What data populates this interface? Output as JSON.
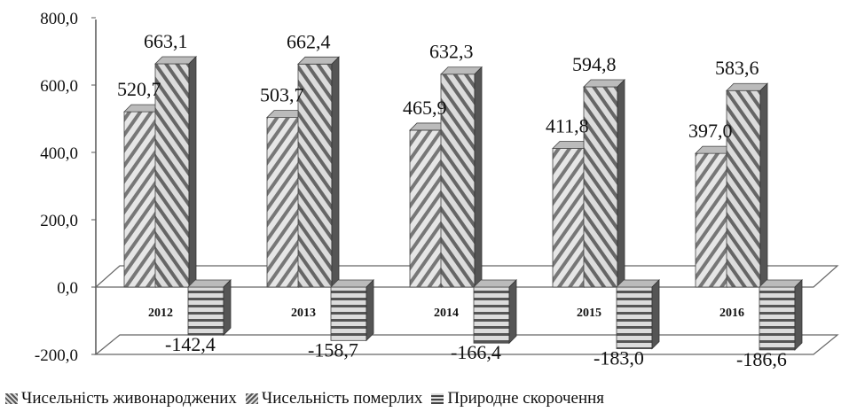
{
  "chart_data": {
    "type": "bar",
    "categories": [
      "2012",
      "2013",
      "2014",
      "2015",
      "2016"
    ],
    "series": [
      {
        "name": "Чисельність живонароджених",
        "values": [
          520.7,
          503.7,
          465.9,
          411.8,
          397.0
        ],
        "labels": [
          "520,7",
          "503,7",
          "465,9",
          "411,8",
          "397,0"
        ]
      },
      {
        "name": "Чисельність померлих",
        "values": [
          663.1,
          662.4,
          632.3,
          594.8,
          583.6
        ],
        "labels": [
          "663,1",
          "662,4",
          "632,3",
          "594,8",
          "583,6"
        ]
      },
      {
        "name": "Природне скорочення",
        "values": [
          -142.4,
          -158.7,
          -166.4,
          -183.0,
          -186.6
        ],
        "labels": [
          "-142,4",
          "-158,7",
          "-166,4",
          "-183,0",
          "-186,6"
        ]
      }
    ],
    "yticks": [
      "800,0",
      "600,0",
      "400,0",
      "200,0",
      "0,0",
      "-200,0"
    ],
    "ylim": [
      -200,
      800
    ],
    "legend_position": "bottom",
    "grid": false
  }
}
